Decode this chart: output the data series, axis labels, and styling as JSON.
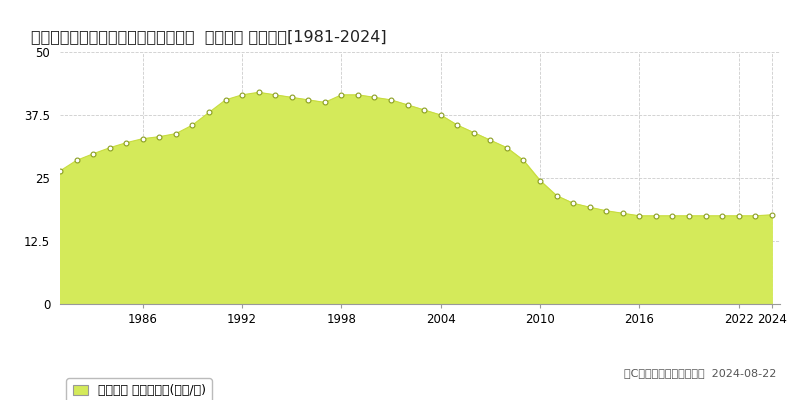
{
  "title": "香川県丸亀市幸町１丁目２２７番１外  地価公示 地価推移[1981-2024]",
  "years": [
    1981,
    1982,
    1983,
    1984,
    1985,
    1986,
    1987,
    1988,
    1989,
    1990,
    1991,
    1992,
    1993,
    1994,
    1995,
    1996,
    1997,
    1998,
    1999,
    2000,
    2001,
    2002,
    2003,
    2004,
    2005,
    2006,
    2007,
    2008,
    2009,
    2010,
    2011,
    2012,
    2013,
    2014,
    2015,
    2016,
    2017,
    2018,
    2019,
    2020,
    2021,
    2022,
    2023,
    2024
  ],
  "values": [
    26.4,
    28.5,
    29.8,
    31.0,
    32.0,
    32.8,
    33.2,
    33.8,
    35.5,
    38.0,
    40.5,
    41.5,
    42.0,
    41.5,
    41.0,
    40.5,
    40.0,
    41.5,
    41.5,
    41.0,
    40.5,
    39.5,
    38.5,
    37.5,
    35.5,
    34.0,
    32.5,
    31.0,
    28.5,
    24.5,
    21.5,
    20.0,
    19.2,
    18.5,
    18.0,
    17.5,
    17.5,
    17.5,
    17.5,
    17.5,
    17.5,
    17.5,
    17.5,
    17.7
  ],
  "fill_color": "#d4ea5a",
  "line_color": "#c8dc40",
  "marker_edge_color": "#8a9e20",
  "background_color": "#ffffff",
  "grid_color": "#cccccc",
  "ylim": [
    0,
    50
  ],
  "yticks": [
    0,
    12.5,
    25,
    37.5,
    50
  ],
  "xlim": [
    1981,
    2024.5
  ],
  "xlabel_ticks": [
    1986,
    1992,
    1998,
    2004,
    2010,
    2016,
    2022,
    2024
  ],
  "legend_label": "地価公示 平均坪単価(万円/坪)",
  "copyright_text": "（C）土地価格ドットコム  2024-08-22",
  "title_fontsize": 11.5,
  "tick_fontsize": 8.5,
  "legend_fontsize": 9,
  "copyright_fontsize": 8
}
